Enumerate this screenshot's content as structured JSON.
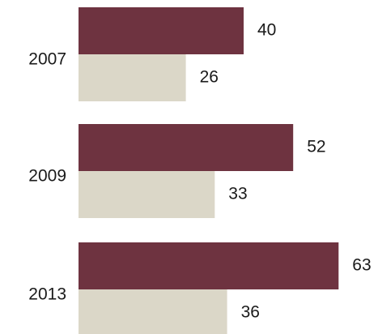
{
  "chart_data": {
    "type": "bar",
    "orientation": "horizontal",
    "categories": [
      "2007",
      "2009",
      "2013"
    ],
    "series": [
      {
        "values": [
          40,
          52,
          63
        ],
        "color": "#6e3340"
      },
      {
        "values": [
          26,
          33,
          36
        ],
        "color": "#dbd7c8"
      }
    ],
    "xlim": [
      0,
      70
    ],
    "grid": false,
    "data_labels": true
  }
}
